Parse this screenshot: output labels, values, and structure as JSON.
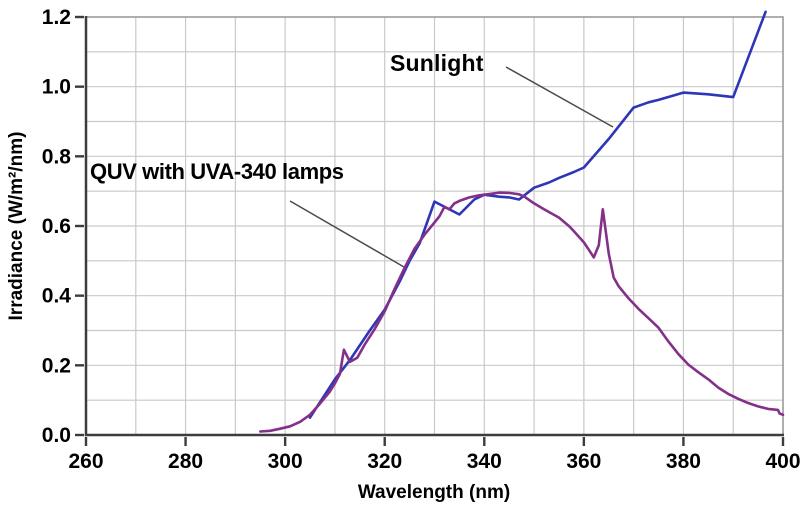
{
  "figure": {
    "background": "#ffffff",
    "grid_color": "#c9c9c9",
    "border_color": "#9b9b9b",
    "axis_color": "#3c3c3c",
    "leader_color": "#4a4a4a"
  },
  "chart_data": {
    "type": "line",
    "title": "",
    "xlabel": "Wavelength (nm)",
    "ylabel": "Irradiance (W/m²/nm)",
    "xlim": [
      260,
      400
    ],
    "ylim": [
      0,
      1.2
    ],
    "x_major_ticks": [
      "260",
      "280",
      "300",
      "320",
      "340",
      "360",
      "380",
      "400"
    ],
    "y_major_ticks": [
      "0.0",
      "0.2",
      "0.4",
      "0.6",
      "0.8",
      "1.0",
      "1.2"
    ],
    "x_minor_step": 10,
    "y_minor_step": 0.1,
    "grid": true,
    "legend_position": "inline-annotations",
    "series": [
      {
        "key": "sunlight",
        "name": "Sunlight",
        "color": "#2e36b8",
        "points": [
          [
            305,
            0.05
          ],
          [
            310,
            0.16
          ],
          [
            313,
            0.215
          ],
          [
            317,
            0.3
          ],
          [
            320,
            0.36
          ],
          [
            323,
            0.44
          ],
          [
            325,
            0.5
          ],
          [
            327,
            0.55
          ],
          [
            330,
            0.67
          ],
          [
            335,
            0.633
          ],
          [
            338,
            0.676
          ],
          [
            340,
            0.69
          ],
          [
            343,
            0.684
          ],
          [
            345,
            0.682
          ],
          [
            347,
            0.676
          ],
          [
            350,
            0.71
          ],
          [
            353,
            0.725
          ],
          [
            355,
            0.738
          ],
          [
            358,
            0.755
          ],
          [
            360,
            0.768
          ],
          [
            365,
            0.85
          ],
          [
            370,
            0.94
          ],
          [
            373,
            0.955
          ],
          [
            375,
            0.962
          ],
          [
            380,
            0.983
          ],
          [
            385,
            0.978
          ],
          [
            390,
            0.97
          ],
          [
            396.5,
            1.215
          ]
        ]
      },
      {
        "key": "quv-uva340",
        "name": "QUV with UVA-340 lamps",
        "color": "#833089",
        "points": [
          [
            295,
            0.01
          ],
          [
            297,
            0.012
          ],
          [
            299,
            0.018
          ],
          [
            301,
            0.025
          ],
          [
            303,
            0.038
          ],
          [
            305,
            0.058
          ],
          [
            307,
            0.09
          ],
          [
            309,
            0.125
          ],
          [
            310,
            0.148
          ],
          [
            311,
            0.175
          ],
          [
            311.8,
            0.245
          ],
          [
            313,
            0.21
          ],
          [
            314.5,
            0.222
          ],
          [
            316,
            0.26
          ],
          [
            318,
            0.305
          ],
          [
            320,
            0.355
          ],
          [
            322,
            0.42
          ],
          [
            324,
            0.48
          ],
          [
            326,
            0.535
          ],
          [
            328,
            0.575
          ],
          [
            330,
            0.61
          ],
          [
            331,
            0.628
          ],
          [
            332,
            0.655
          ],
          [
            333,
            0.648
          ],
          [
            334,
            0.665
          ],
          [
            335,
            0.672
          ],
          [
            337,
            0.682
          ],
          [
            339,
            0.688
          ],
          [
            341,
            0.692
          ],
          [
            343,
            0.696
          ],
          [
            345,
            0.695
          ],
          [
            347,
            0.691
          ],
          [
            348,
            0.685
          ],
          [
            350,
            0.665
          ],
          [
            352,
            0.648
          ],
          [
            355,
            0.624
          ],
          [
            357,
            0.6
          ],
          [
            358,
            0.585
          ],
          [
            360,
            0.553
          ],
          [
            361,
            0.532
          ],
          [
            362,
            0.51
          ],
          [
            363,
            0.545
          ],
          [
            363.8,
            0.648
          ],
          [
            365,
            0.52
          ],
          [
            366,
            0.452
          ],
          [
            367,
            0.427
          ],
          [
            369,
            0.392
          ],
          [
            371,
            0.362
          ],
          [
            373,
            0.335
          ],
          [
            375,
            0.308
          ],
          [
            377,
            0.268
          ],
          [
            379,
            0.232
          ],
          [
            381,
            0.202
          ],
          [
            383,
            0.18
          ],
          [
            385,
            0.16
          ],
          [
            387,
            0.136
          ],
          [
            389,
            0.118
          ],
          [
            391,
            0.104
          ],
          [
            393,
            0.092
          ],
          [
            395,
            0.082
          ],
          [
            397,
            0.075
          ],
          [
            399,
            0.072
          ],
          [
            399.3,
            0.062
          ],
          [
            400,
            0.058
          ]
        ]
      }
    ],
    "annotations": [
      {
        "key": "sunlight-label",
        "text": "Sunlight",
        "color": "#2025c8"
      },
      {
        "key": "quv-label",
        "text": "QUV with UVA-340 lamps",
        "color": "#8a1f8a"
      }
    ]
  }
}
